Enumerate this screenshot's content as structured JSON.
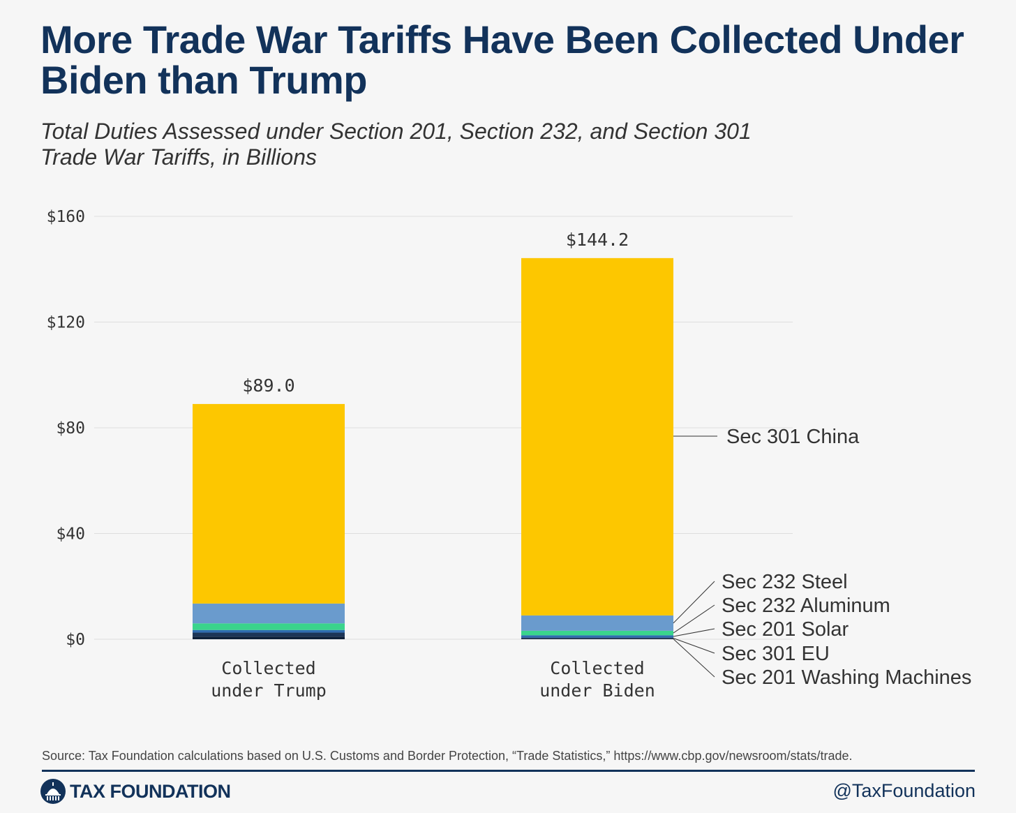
{
  "header": {
    "title": "More Trade War Tariffs Have Been Collected Under Biden than Trump",
    "subtitle": "Total Duties Assessed under Section 201, Section 232, and Section 301 Trade War Tariffs, in Billions"
  },
  "colors": {
    "sec301_china": "#fdc700",
    "sec232_steel": "#6a9bcd",
    "sec232_aluminum": "#3ad48c",
    "sec201_solar": "#2f6cb0",
    "sec301_eu": "#1d3557",
    "sec201_washing": "#0d1f38",
    "gridline": "#dddddd",
    "brand": "#12325a"
  },
  "chart_data": {
    "type": "bar",
    "stacked": true,
    "title": "More Trade War Tariffs Have Been Collected Under Biden than Trump",
    "subtitle": "Total Duties Assessed under Section 201, Section 232, and Section 301 Trade War Tariffs, in Billions",
    "categories": [
      "Collected under Trump",
      "Collected under Biden"
    ],
    "category_lines": [
      [
        "Collected",
        "under Trump"
      ],
      [
        "Collected",
        "under Biden"
      ]
    ],
    "series": [
      {
        "name": "Sec 201 Washing Machines",
        "color": "#0d1f38",
        "values": [
          1.0,
          0.2
        ]
      },
      {
        "name": "Sec 301 EU",
        "color": "#1d3557",
        "values": [
          1.5,
          0.4
        ]
      },
      {
        "name": "Sec 201 Solar",
        "color": "#2f6cb0",
        "values": [
          1.0,
          0.9
        ]
      },
      {
        "name": "Sec 232 Aluminum",
        "color": "#3ad48c",
        "values": [
          2.5,
          1.7
        ]
      },
      {
        "name": "Sec 232 Steel",
        "color": "#6a9bcd",
        "values": [
          7.5,
          5.8
        ]
      },
      {
        "name": "Sec 301 China",
        "color": "#fdc700",
        "values": [
          75.5,
          135.2
        ]
      }
    ],
    "totals": [
      89.0,
      144.2
    ],
    "total_labels": [
      "$89.0",
      "$144.2"
    ],
    "yticks": [
      0,
      40,
      80,
      120,
      160
    ],
    "ytick_labels": [
      "$0",
      "$40",
      "$80",
      "$120",
      "$160"
    ],
    "ylim": [
      0,
      160
    ],
    "xlabel": "",
    "ylabel": "",
    "grid": true,
    "legend": {
      "placement": "right, direct labels with leader lines",
      "top_label": "Sec 301 China",
      "stack_labels": [
        "Sec 232 Steel",
        "Sec 232 Aluminum",
        "Sec 201 Solar",
        "Sec 301 EU",
        "Sec 201 Washing Machines"
      ]
    }
  },
  "footer": {
    "source": "Source: Tax Foundation calculations based on U.S. Customs and Border Protection, “Trade Statistics,” https://www.cbp.gov/newsroom/stats/trade.",
    "brand_name": "TAX FOUNDATION",
    "brand_logo_icon": "capitol-dome-icon",
    "handle": "@TaxFoundation"
  }
}
